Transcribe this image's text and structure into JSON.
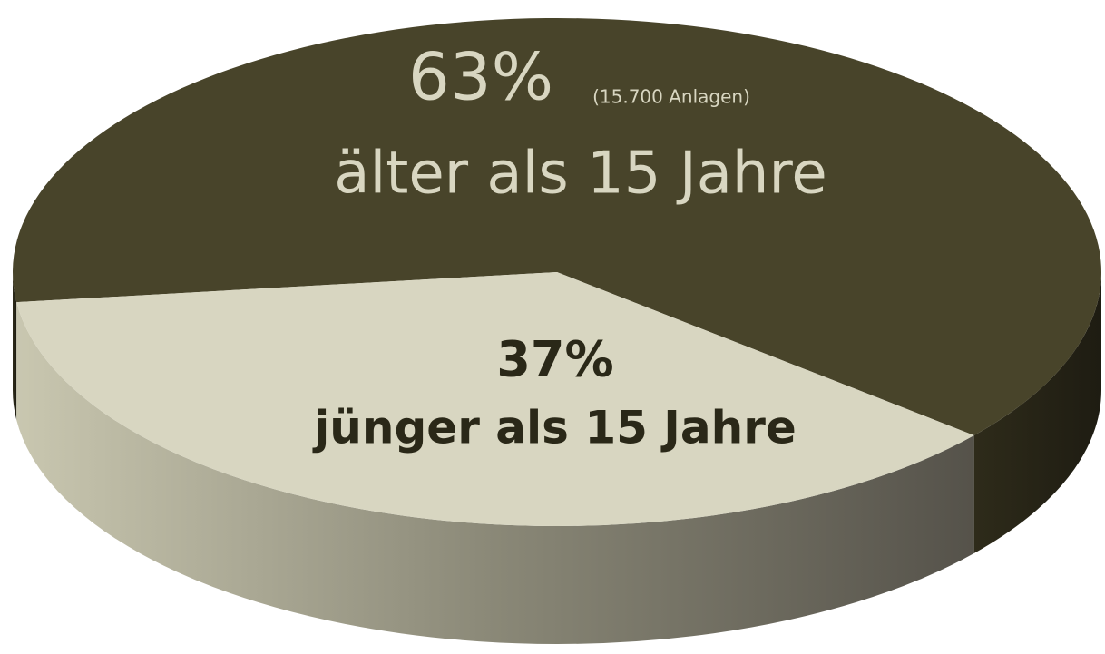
{
  "chart_data": {
    "type": "pie",
    "categories": [
      "älter als 15 Jahre",
      "jünger als 15 Jahre"
    ],
    "values": [
      63,
      37
    ],
    "value_labels": [
      "63%",
      "37%"
    ],
    "annotation": "(15.700 Anlagen)",
    "colors": [
      "#48442a",
      "#d8d6c1"
    ]
  }
}
